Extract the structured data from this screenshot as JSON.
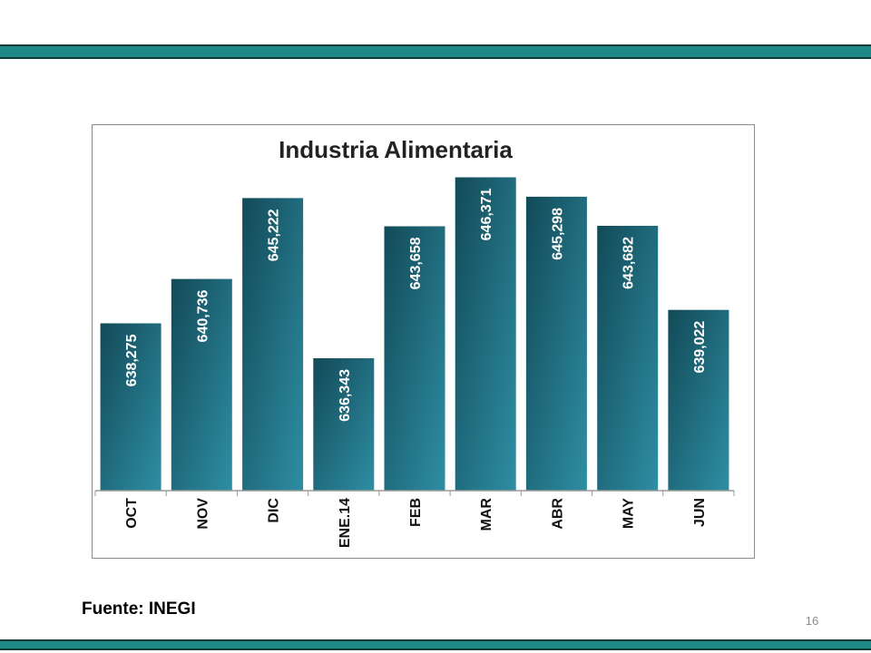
{
  "slide": {
    "source_text": "Fuente: INEGI",
    "page_number": "16",
    "band_color": "#1f8a85"
  },
  "chart_data": {
    "type": "bar",
    "title": "Industria Alimentaria",
    "categories": [
      "OCT",
      "NOV",
      "DIC",
      "ENE.14",
      "FEB",
      "MAR",
      "ABR",
      "MAY",
      "JUN"
    ],
    "values": [
      638275,
      640736,
      645222,
      636343,
      643658,
      646371,
      645298,
      643682,
      639022
    ],
    "value_labels": [
      "638,275",
      "640,736",
      "645,222",
      "636,343",
      "643,658",
      "646,371",
      "645,298",
      "643,682",
      "639,022"
    ],
    "ylim": [
      629000,
      647000
    ],
    "grid": false,
    "legend": "none",
    "bar_color_dark": "#124a58",
    "bar_color_light": "#2e8ea3"
  }
}
